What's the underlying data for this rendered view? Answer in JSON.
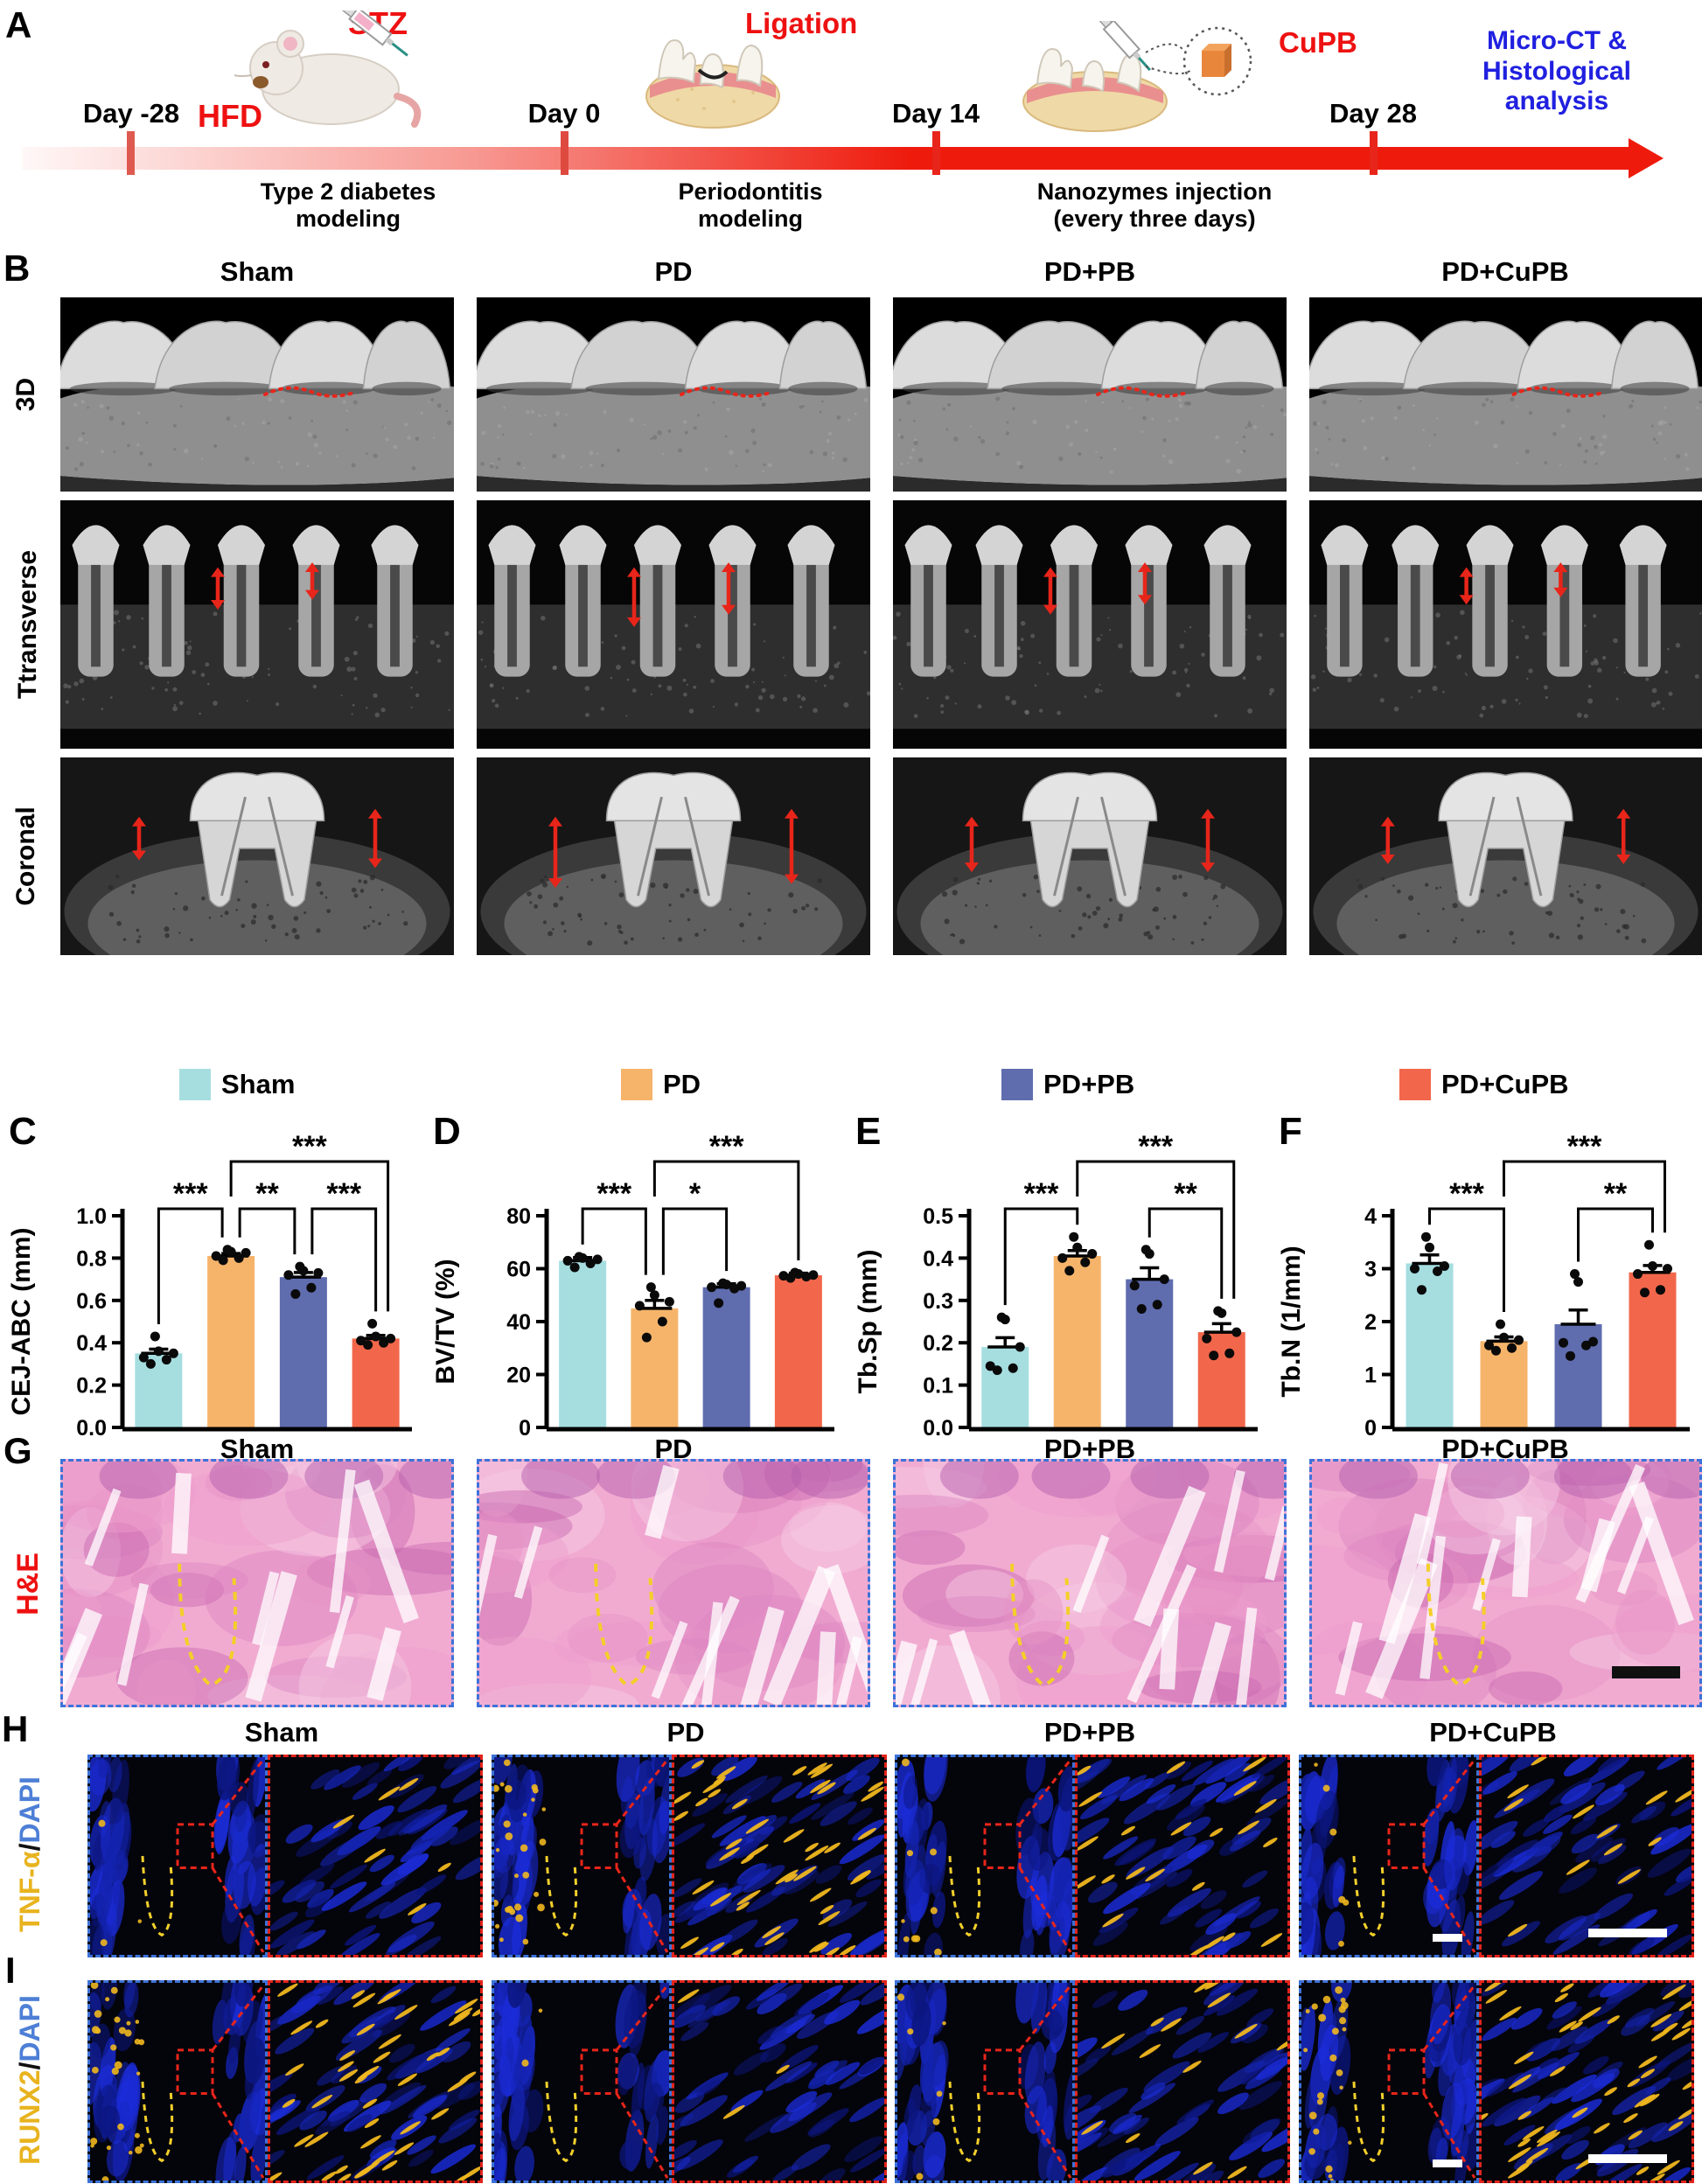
{
  "groups": [
    "Sham",
    "PD",
    "PD+PB",
    "PD+CuPB"
  ],
  "group_colors": [
    "#A6DEE0",
    "#F6B46B",
    "#5F6CAE",
    "#F2674B"
  ],
  "panelA": {
    "letter": "A",
    "timeline": {
      "points": [
        {
          "day": "Day -28"
        },
        {
          "day": "Day 0"
        },
        {
          "day": "Day 14"
        },
        {
          "day": "Day 28"
        }
      ],
      "phases": [
        {
          "line1": "Type 2 diabetes",
          "line2": "modeling"
        },
        {
          "line1": "Periodontitis",
          "line2": "modeling"
        },
        {
          "line1": "Nanozymes injection",
          "line2": "(every three days)"
        }
      ],
      "annotations": {
        "stz": "STZ",
        "hfd": "HFD",
        "ligation": "Ligation",
        "cupb": "CuPB",
        "endpoint_line1": "Micro-CT &",
        "endpoint_line2": "Histological",
        "endpoint_line3": "analysis"
      }
    }
  },
  "panelB": {
    "letter": "B",
    "row_labels": [
      "3D",
      "Ttransverse",
      "Coronal"
    ]
  },
  "legend": {
    "items": [
      {
        "label": "Sham",
        "color": "#A6DEE0"
      },
      {
        "label": "PD",
        "color": "#F6B46B"
      },
      {
        "label": "PD+PB",
        "color": "#5F6CAE"
      },
      {
        "label": "PD+CuPB",
        "color": "#F2674B"
      }
    ]
  },
  "chart_data": [
    {
      "panel_letter": "C",
      "type": "bar",
      "ylabel": "CEJ-ABC (mm)",
      "ylim": [
        0,
        1.0
      ],
      "yticks": [
        "0.0",
        "0.2",
        "0.4",
        "0.6",
        "0.8",
        "1.0"
      ],
      "categories": [
        "Sham",
        "PD",
        "PD+PB",
        "PD+CuPB"
      ],
      "values": [
        0.35,
        0.81,
        0.71,
        0.42
      ],
      "errors": [
        0.02,
        0.012,
        0.022,
        0.015
      ],
      "points": [
        [
          0.3,
          0.32,
          0.33,
          0.35,
          0.36,
          0.43
        ],
        [
          0.79,
          0.8,
          0.81,
          0.825,
          0.83,
          0.84
        ],
        [
          0.63,
          0.66,
          0.72,
          0.73,
          0.74,
          0.76
        ],
        [
          0.39,
          0.4,
          0.41,
          0.42,
          0.43,
          0.49
        ]
      ],
      "significance": [
        {
          "pair": [
            0,
            1
          ],
          "label": "***"
        },
        {
          "pair": [
            1,
            2
          ],
          "label": "**"
        },
        {
          "pair": [
            2,
            3
          ],
          "label": "***"
        },
        {
          "pair": [
            1,
            3
          ],
          "label": "***",
          "top": true
        }
      ],
      "legend_position": "top",
      "grid": false
    },
    {
      "panel_letter": "D",
      "type": "bar",
      "ylabel": "BV/TV (%)",
      "ylim": [
        0,
        80
      ],
      "yticks": [
        "0",
        "20",
        "40",
        "60",
        "80"
      ],
      "categories": [
        "Sham",
        "PD",
        "PD+PB",
        "PD+CuPB"
      ],
      "values": [
        63,
        45,
        53,
        57.5
      ],
      "errors": [
        1.2,
        3,
        1.3,
        0.8
      ],
      "points": [
        [
          60.5,
          62,
          63,
          63.5,
          64,
          64.5
        ],
        [
          34,
          40,
          46,
          47.5,
          50,
          53
        ],
        [
          47,
          52.5,
          53,
          53.5,
          54,
          54.5
        ],
        [
          56.5,
          57,
          57.3,
          57.6,
          58,
          58.5
        ]
      ],
      "significance": [
        {
          "pair": [
            0,
            1
          ],
          "label": "***"
        },
        {
          "pair": [
            1,
            2
          ],
          "label": "*"
        },
        {
          "pair": [
            1,
            3
          ],
          "label": "***",
          "top": true
        }
      ],
      "legend_position": "top",
      "grid": false
    },
    {
      "panel_letter": "E",
      "type": "bar",
      "ylabel": "Tb.Sp (mm)",
      "ylim": [
        0,
        0.5
      ],
      "yticks": [
        "0.0",
        "0.1",
        "0.2",
        "0.3",
        "0.4",
        "0.5"
      ],
      "categories": [
        "Sham",
        "PD",
        "PD+PB",
        "PD+CuPB"
      ],
      "values": [
        0.19,
        0.405,
        0.35,
        0.225
      ],
      "errors": [
        0.022,
        0.013,
        0.027,
        0.02
      ],
      "points": [
        [
          0.135,
          0.14,
          0.145,
          0.19,
          0.255,
          0.26
        ],
        [
          0.37,
          0.39,
          0.4,
          0.41,
          0.425,
          0.45
        ],
        [
          0.28,
          0.29,
          0.335,
          0.35,
          0.41,
          0.42
        ],
        [
          0.17,
          0.175,
          0.21,
          0.225,
          0.27,
          0.275
        ]
      ],
      "significance": [
        {
          "pair": [
            0,
            1
          ],
          "label": "***"
        },
        {
          "pair": [
            2,
            3
          ],
          "label": "**"
        },
        {
          "pair": [
            1,
            3
          ],
          "label": "***",
          "top": true
        }
      ],
      "legend_position": "top",
      "grid": false
    },
    {
      "panel_letter": "F",
      "type": "bar",
      "ylabel": "Tb.N (1/mm)",
      "ylim": [
        0,
        4
      ],
      "yticks": [
        "0",
        "1",
        "2",
        "3",
        "4"
      ],
      "categories": [
        "Sham",
        "PD",
        "PD+PB",
        "PD+CuPB"
      ],
      "values": [
        3.1,
        1.63,
        1.95,
        2.93
      ],
      "errors": [
        0.16,
        0.08,
        0.27,
        0.13
      ],
      "points": [
        [
          2.6,
          2.95,
          3.0,
          3.05,
          3.4,
          3.6
        ],
        [
          1.45,
          1.5,
          1.55,
          1.65,
          1.7,
          1.95
        ],
        [
          1.35,
          1.55,
          1.6,
          1.62,
          2.75,
          2.9
        ],
        [
          2.55,
          2.6,
          2.9,
          3.0,
          3.05,
          3.45
        ]
      ],
      "significance": [
        {
          "pair": [
            0,
            1
          ],
          "label": "***"
        },
        {
          "pair": [
            2,
            3
          ],
          "label": "**"
        },
        {
          "pair": [
            1,
            3
          ],
          "label": "***",
          "top": true
        }
      ],
      "legend_position": "top",
      "grid": false
    }
  ],
  "panelG": {
    "letter": "G",
    "row_label": "H&E",
    "row_label_color": "#EE1111"
  },
  "panelH": {
    "letter": "H",
    "row_label_parts": [
      {
        "text": "TNF-α",
        "color": "#E8B31E"
      },
      {
        "text": "/",
        "color": "#111111"
      },
      {
        "text": "DAPI",
        "color": "#4D7FD6"
      }
    ]
  },
  "panelI": {
    "letter": "I",
    "row_label_parts": [
      {
        "text": "RUNX2",
        "color": "#E8B31E"
      },
      {
        "text": "/",
        "color": "#111111"
      },
      {
        "text": "DAPI",
        "color": "#4D7FD6"
      }
    ]
  }
}
